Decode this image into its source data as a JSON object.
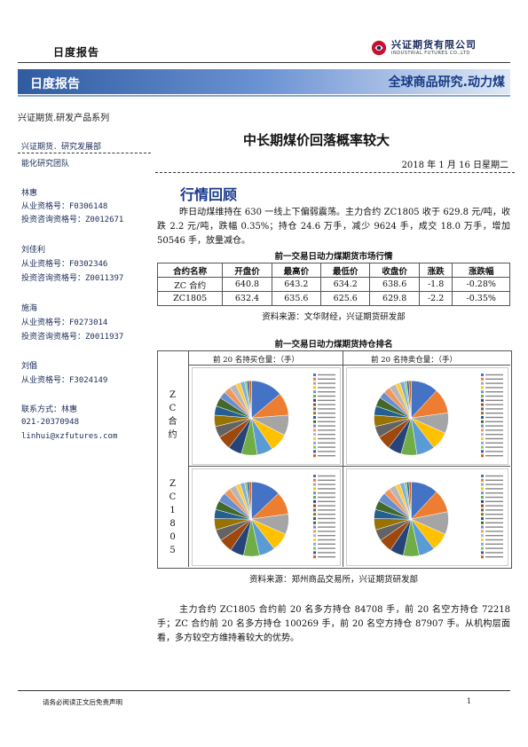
{
  "header": {
    "report_type": "日度报告",
    "logo_cn": "兴证期货有限公司",
    "logo_en": "INDUSTRIAL FUTURES CO.,LTD",
    "band_left": "日度报告",
    "band_right": "全球商品研究.动力煤",
    "series": "兴证期货.研发产品系列"
  },
  "sidebar": {
    "dept": "兴证期货．研究发展部",
    "team": "能化研究团队",
    "analysts": [
      {
        "name": "林惠",
        "lines": [
          "从业资格号：F0306148",
          "投资咨询资格号：Z0012671"
        ]
      },
      {
        "name": "刘佳利",
        "lines": [
          "从业资格号：F0302346",
          "投资咨询资格号：Z0011397"
        ]
      },
      {
        "name": "施海",
        "lines": [
          "从业资格号：F0273014",
          "投资咨询资格号：Z0011937"
        ]
      },
      {
        "name": "刘倡",
        "lines": [
          "从业资格号：F3024149"
        ]
      }
    ],
    "contact_label": "联系方式：林惠",
    "phone": "021-20370948",
    "email": "linhui@xzfutures.com"
  },
  "article": {
    "title": "中长期煤价回落概率较大",
    "date": "2018 年 1 月 16 日星期二",
    "section": "行情回顾",
    "para1": "昨日动煤维持在 630 一线上下偏弱震荡。主力合约 ZC1805 收于 629.8 元/吨，收跌 2.2 元/吨，跌幅 0.35%；持仓 24.6 万手，减少 9624 手，成交 18.0 万手，增加 50546 手，放量减仓。",
    "table_title": "前一交易日动力煤期货市场行情",
    "table_headers": [
      "合约名称",
      "开盘价",
      "最高价",
      "最低价",
      "收盘价",
      "涨跌",
      "涨跌幅"
    ],
    "table_rows": [
      [
        "ZC 合约",
        "640.8",
        "643.2",
        "634.2",
        "638.6",
        "-1.8",
        "-0.28%"
      ],
      [
        "ZC1805",
        "632.4",
        "635.6",
        "625.6",
        "629.8",
        "-2.2",
        "-0.35%"
      ]
    ],
    "table_source": "资料来源：文华财经，兴证期货研发部",
    "pos_title": "前一交易日动力煤期货持仓排名",
    "pos_col_long": "前 20 名持买仓量：（手）",
    "pos_col_short": "前 20 名持卖仓量：（手）",
    "pos_row_labels": [
      [
        "Z",
        "C",
        "合",
        "约"
      ],
      [
        "Z",
        "C",
        "1",
        "8",
        "0",
        "5"
      ]
    ],
    "pos_source": "资料来源：郑州商品交易所，兴证期货研发部",
    "para2": "主力合约 ZC1805 合约前 20 名多方持仓 84708 手，前 20 名空方持仓 72218 手；ZC 合约前 20 名多方持仓 100269 手，前 20 名空方持仓 87907 手。从机构层面看，多方较空方维持着较大的优势。"
  },
  "footer": {
    "disclaimer": "请务必阅读正文后免责声明",
    "page": "1"
  },
  "colors": {
    "brand_navy": "#173b84",
    "section_blue": "#1a3a8c",
    "pie_palette": [
      "#4472c4",
      "#ed7d31",
      "#a5a5a5",
      "#ffc000",
      "#5b9bd5",
      "#70ad47",
      "#264478",
      "#9e480e",
      "#636363",
      "#997300",
      "#255e91",
      "#43682b",
      "#698ed0",
      "#f1975a",
      "#b7b7b7",
      "#ffcd33",
      "#7cafdd",
      "#8cc168",
      "#335aa1",
      "#d26012"
    ]
  }
}
